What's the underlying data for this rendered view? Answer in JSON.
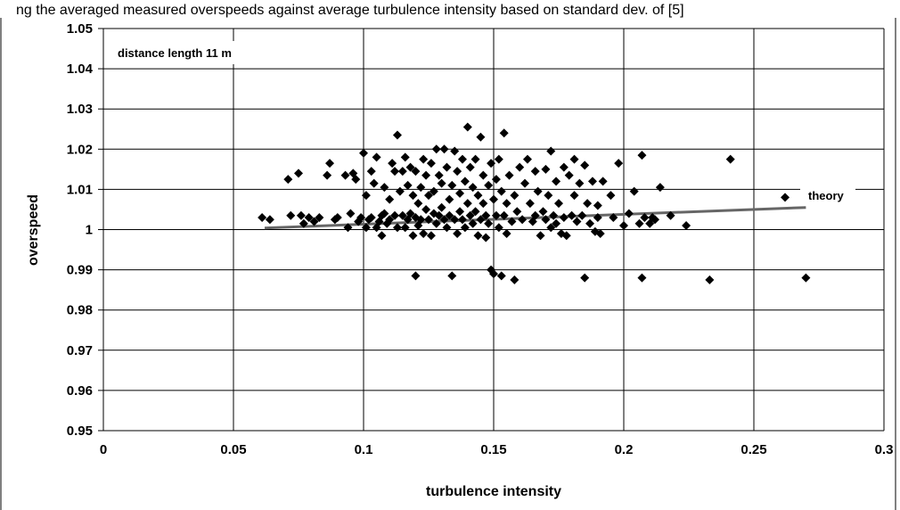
{
  "header": {
    "caption": "ng the averaged measured overspeeds against average turbulence intensity based on standard dev. of [5]"
  },
  "chart_data": {
    "type": "scatter",
    "title": "",
    "xlabel": "turbulence intensity",
    "ylabel": "overspeed",
    "xlim": [
      0,
      0.3
    ],
    "ylim": [
      0.95,
      1.05
    ],
    "x_ticks": [
      "0",
      "0.05",
      "0.1",
      "0.15",
      "0.2",
      "0.25",
      "0.3"
    ],
    "y_ticks": [
      "0.95",
      "0.96",
      "0.97",
      "0.98",
      "0.99",
      "1",
      "1.01",
      "1.02",
      "1.03",
      "1.04",
      "1.05"
    ],
    "grid": true,
    "annotations": {
      "inset_label": "distance length 11 m",
      "theory_label": "theory"
    },
    "series": [
      {
        "name": "theory",
        "style": "line",
        "color": "#666666",
        "points": [
          [
            0.062,
            1.0004
          ],
          [
            0.27,
            1.0055
          ]
        ]
      },
      {
        "style": "diamond-marker",
        "color": "#000000",
        "points": [
          [
            0.061,
            1.003
          ],
          [
            0.064,
            1.0025
          ],
          [
            0.071,
            1.0125
          ],
          [
            0.072,
            1.0035
          ],
          [
            0.075,
            1.014
          ],
          [
            0.076,
            1.0035
          ],
          [
            0.077,
            1.0015
          ],
          [
            0.079,
            1.003
          ],
          [
            0.081,
            1.002
          ],
          [
            0.083,
            1.003
          ],
          [
            0.086,
            1.0135
          ],
          [
            0.087,
            1.0165
          ],
          [
            0.089,
            1.0025
          ],
          [
            0.09,
            1.003
          ],
          [
            0.093,
            1.0135
          ],
          [
            0.094,
            1.0005
          ],
          [
            0.095,
            1.004
          ],
          [
            0.096,
            1.014
          ],
          [
            0.097,
            1.0125
          ],
          [
            0.098,
            1.002
          ],
          [
            0.099,
            1.003
          ],
          [
            0.1,
            1.019
          ],
          [
            0.101,
            1.0005
          ],
          [
            0.101,
            1.0085
          ],
          [
            0.102,
            1.0025
          ],
          [
            0.103,
            1.0145
          ],
          [
            0.103,
            1.003
          ],
          [
            0.104,
            1.0115
          ],
          [
            0.105,
            1.0005
          ],
          [
            0.105,
            1.018
          ],
          [
            0.106,
            1.002
          ],
          [
            0.107,
            0.9985
          ],
          [
            0.107,
            1.0035
          ],
          [
            0.108,
            1.0105
          ],
          [
            0.108,
            1.004
          ],
          [
            0.109,
            1.0015
          ],
          [
            0.11,
            1.0075
          ],
          [
            0.11,
            1.0025
          ],
          [
            0.111,
            1.0165
          ],
          [
            0.112,
            1.0145
          ],
          [
            0.112,
            1.0035
          ],
          [
            0.113,
            1.0235
          ],
          [
            0.113,
            1.0005
          ],
          [
            0.114,
            1.0095
          ],
          [
            0.115,
            1.0145
          ],
          [
            0.115,
            1.0035
          ],
          [
            0.116,
            1.0005
          ],
          [
            0.116,
            1.018
          ],
          [
            0.117,
            1.011
          ],
          [
            0.117,
            1.0025
          ],
          [
            0.118,
            1.0155
          ],
          [
            0.118,
            1.004
          ],
          [
            0.119,
            0.9985
          ],
          [
            0.119,
            1.0085
          ],
          [
            0.12,
            1.0145
          ],
          [
            0.12,
            1.003
          ],
          [
            0.12,
            0.9885
          ],
          [
            0.121,
            1.0065
          ],
          [
            0.121,
            1.001
          ],
          [
            0.122,
            1.0105
          ],
          [
            0.122,
            1.0025
          ],
          [
            0.123,
            1.0175
          ],
          [
            0.123,
            0.999
          ],
          [
            0.124,
            1.005
          ],
          [
            0.124,
            1.0135
          ],
          [
            0.125,
            1.0025
          ],
          [
            0.125,
            1.0085
          ],
          [
            0.126,
            1.0165
          ],
          [
            0.126,
            0.9985
          ],
          [
            0.127,
            1.0095
          ],
          [
            0.127,
            1.004
          ],
          [
            0.128,
            1.02
          ],
          [
            0.128,
            1.0015
          ],
          [
            0.129,
            1.0135
          ],
          [
            0.129,
            1.0035
          ],
          [
            0.13,
            1.0055
          ],
          [
            0.13,
            1.0115
          ],
          [
            0.131,
            1.0025
          ],
          [
            0.131,
            1.02
          ],
          [
            0.132,
            1.0005
          ],
          [
            0.132,
            1.0155
          ],
          [
            0.133,
            1.0035
          ],
          [
            0.133,
            1.0075
          ],
          [
            0.134,
            0.9885
          ],
          [
            0.134,
            1.011
          ],
          [
            0.135,
            1.0025
          ],
          [
            0.135,
            1.0195
          ],
          [
            0.136,
            0.999
          ],
          [
            0.136,
            1.0145
          ],
          [
            0.137,
            1.0045
          ],
          [
            0.137,
            1.009
          ],
          [
            0.138,
            1.0175
          ],
          [
            0.138,
            1.0025
          ],
          [
            0.139,
            1.012
          ],
          [
            0.139,
            1.0005
          ],
          [
            0.14,
            1.0255
          ],
          [
            0.14,
            1.0065
          ],
          [
            0.141,
            1.0035
          ],
          [
            0.141,
            1.0155
          ],
          [
            0.142,
            1.0105
          ],
          [
            0.142,
            1.0015
          ],
          [
            0.143,
            1.0175
          ],
          [
            0.143,
            1.0045
          ],
          [
            0.144,
            1.0085
          ],
          [
            0.144,
            0.9985
          ],
          [
            0.145,
            1.023
          ],
          [
            0.145,
            1.0025
          ],
          [
            0.146,
            1.0135
          ],
          [
            0.146,
            1.0065
          ],
          [
            0.147,
            1.0035
          ],
          [
            0.147,
            0.998
          ],
          [
            0.148,
            1.011
          ],
          [
            0.148,
            1.0015
          ],
          [
            0.149,
            0.99
          ],
          [
            0.149,
            1.0165
          ],
          [
            0.15,
            1.0075
          ],
          [
            0.15,
            0.989
          ],
          [
            0.151,
            1.0035
          ],
          [
            0.151,
            1.0125
          ],
          [
            0.152,
            1.0175
          ],
          [
            0.152,
            1.0005
          ],
          [
            0.153,
            0.9885
          ],
          [
            0.153,
            1.0095
          ],
          [
            0.154,
            1.024
          ],
          [
            0.154,
            1.0035
          ],
          [
            0.155,
            1.0065
          ],
          [
            0.155,
            0.999
          ],
          [
            0.156,
            1.0135
          ],
          [
            0.157,
            1.002
          ],
          [
            0.158,
            0.9875
          ],
          [
            0.158,
            1.0085
          ],
          [
            0.159,
            1.0045
          ],
          [
            0.16,
            1.0155
          ],
          [
            0.161,
            1.0025
          ],
          [
            0.162,
            1.0115
          ],
          [
            0.163,
            1.0175
          ],
          [
            0.164,
            1.0065
          ],
          [
            0.165,
            1.002
          ],
          [
            0.166,
            1.0145
          ],
          [
            0.166,
            1.0035
          ],
          [
            0.167,
            1.0095
          ],
          [
            0.168,
            0.9985
          ],
          [
            0.169,
            1.0045
          ],
          [
            0.17,
            1.015
          ],
          [
            0.17,
            1.0025
          ],
          [
            0.171,
            1.0085
          ],
          [
            0.172,
            1.0195
          ],
          [
            0.172,
            1.0005
          ],
          [
            0.173,
            1.0035
          ],
          [
            0.174,
            1.012
          ],
          [
            0.174,
            1.0015
          ],
          [
            0.175,
            1.0065
          ],
          [
            0.176,
            0.999
          ],
          [
            0.177,
            1.0155
          ],
          [
            0.177,
            1.003
          ],
          [
            0.178,
            0.9985
          ],
          [
            0.179,
            1.0135
          ],
          [
            0.18,
            1.0035
          ],
          [
            0.181,
            1.0175
          ],
          [
            0.181,
            1.0085
          ],
          [
            0.182,
            1.002
          ],
          [
            0.183,
            1.0115
          ],
          [
            0.184,
            1.0035
          ],
          [
            0.185,
            1.016
          ],
          [
            0.185,
            0.988
          ],
          [
            0.186,
            1.0065
          ],
          [
            0.187,
            1.0015
          ],
          [
            0.188,
            1.012
          ],
          [
            0.189,
            0.9995
          ],
          [
            0.19,
            1.006
          ],
          [
            0.19,
            1.003
          ],
          [
            0.191,
            0.999
          ],
          [
            0.192,
            1.012
          ],
          [
            0.195,
            1.0085
          ],
          [
            0.196,
            1.003
          ],
          [
            0.198,
            1.0165
          ],
          [
            0.2,
            1.001
          ],
          [
            0.202,
            1.004
          ],
          [
            0.204,
            1.0095
          ],
          [
            0.206,
            1.0015
          ],
          [
            0.207,
            1.0185
          ],
          [
            0.207,
            0.988
          ],
          [
            0.208,
            1.003
          ],
          [
            0.21,
            1.0015
          ],
          [
            0.211,
            1.003
          ],
          [
            0.212,
            1.0025
          ],
          [
            0.214,
            1.0105
          ],
          [
            0.218,
            1.0035
          ],
          [
            0.224,
            1.001
          ],
          [
            0.233,
            0.9875
          ],
          [
            0.241,
            1.0175
          ],
          [
            0.262,
            1.008
          ],
          [
            0.27,
            0.988
          ]
        ]
      }
    ]
  }
}
